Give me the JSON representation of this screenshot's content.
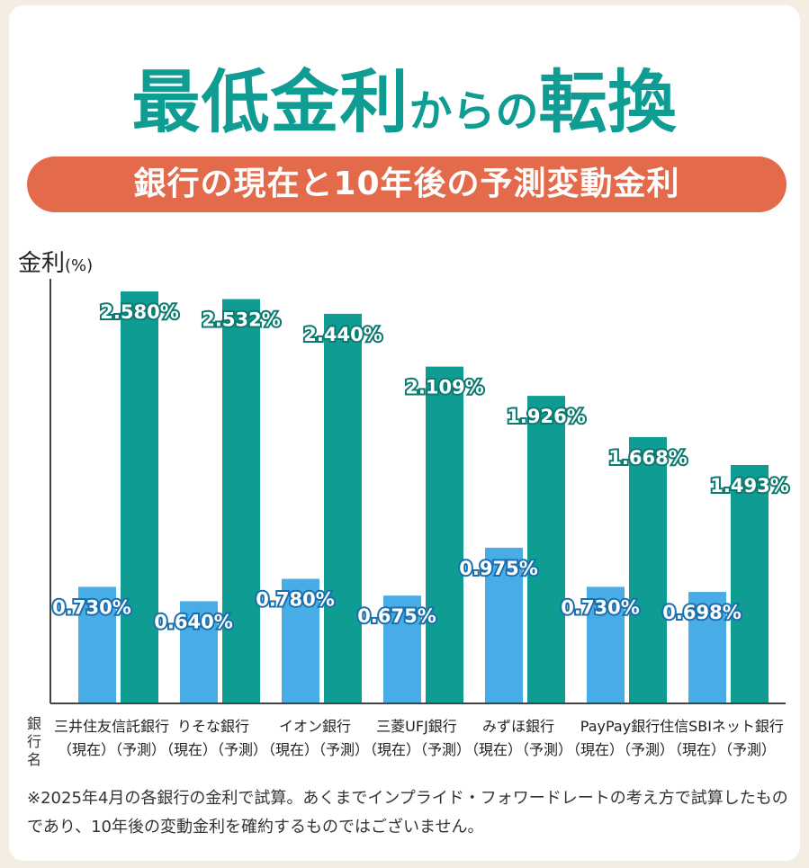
{
  "title": {
    "part1": "最低金利",
    "part2": "からの",
    "part3": "転換"
  },
  "subtitle": "銀行の現在と10年後の予測変動金利",
  "ylabel": {
    "main": "金利",
    "unit": "(%)"
  },
  "xlabel": "銀行名",
  "footnote": "※2025年4月の各銀行の金利で試算。あくまでインプライド・フォワードレートの考え方で試算したものであり、10年後の変動金利を確約するものではございません。",
  "colors": {
    "current": "#48ade6",
    "future": "#0f9c92",
    "accent": "#e36a4b"
  },
  "chart_data": {
    "type": "bar",
    "categories": [
      "三井住友信託銀行",
      "りそな銀行",
      "イオン銀行",
      "三菱UFJ銀行",
      "みずほ銀行",
      "PayPay銀行",
      "住信SBIネット銀行"
    ],
    "category_sublabel": "（現在）（予測）",
    "series": [
      {
        "key": "current",
        "values": [
          0.73,
          0.64,
          0.78,
          0.675,
          0.975,
          0.73,
          0.698
        ],
        "labels": [
          "0.730%",
          "0.640%",
          "0.780%",
          "0.675%",
          "0.975%",
          "0.730%",
          "0.698%"
        ]
      },
      {
        "key": "future",
        "values": [
          2.58,
          2.532,
          2.44,
          2.109,
          1.926,
          1.668,
          1.493
        ],
        "labels": [
          "2.580%",
          "2.532%",
          "2.440%",
          "2.109%",
          "1.926%",
          "1.668%",
          "1.493%"
        ]
      }
    ],
    "ylabel": "金利(%)",
    "xlabel": "銀行名",
    "ylim": [
      0,
      2.8
    ],
    "grid": false,
    "legend": "none"
  }
}
